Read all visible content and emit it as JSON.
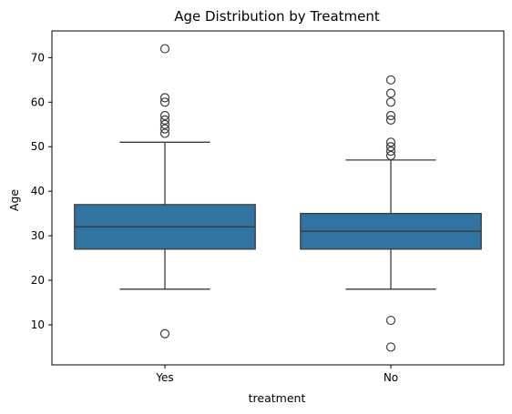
{
  "chart_data": {
    "type": "box",
    "title": "Age Distribution by Treatment",
    "xlabel": "treatment",
    "ylabel": "Age",
    "ylim": [
      1,
      76
    ],
    "yticks": [
      10,
      20,
      30,
      40,
      50,
      60,
      70
    ],
    "grid": false,
    "categories": [
      "Yes",
      "No"
    ],
    "boxes": [
      {
        "category": "Yes",
        "whisker_low": 18,
        "q1": 27,
        "median": 32,
        "q3": 37,
        "whisker_high": 51,
        "outliers": [
          8,
          53,
          54,
          55,
          56,
          57,
          60,
          61,
          72
        ]
      },
      {
        "category": "No",
        "whisker_low": 18,
        "q1": 27,
        "median": 31,
        "q3": 35,
        "whisker_high": 47,
        "outliers": [
          5,
          11,
          48,
          49,
          50,
          51,
          56,
          57,
          60,
          62,
          65
        ]
      }
    ],
    "colors": {
      "box_fill": "#3274a1",
      "line": "#3b3b3b",
      "outlier_edge": "#3b3b3b"
    }
  }
}
